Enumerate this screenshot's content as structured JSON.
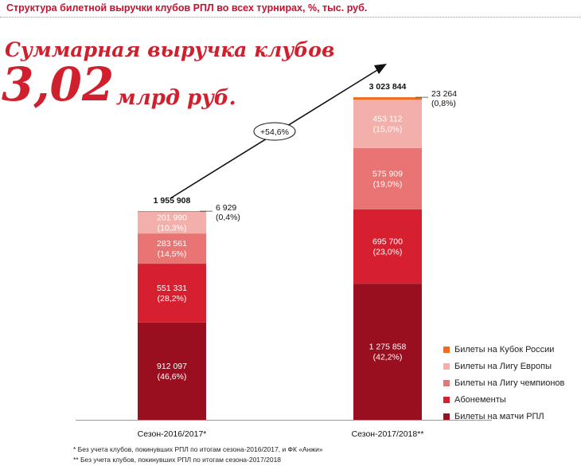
{
  "header": {
    "title": "Структура билетной выручки клубов РПЛ во всех турнирах, %, тыс. руб."
  },
  "headline": {
    "title": "Суммарная выручка клубов",
    "value": "3,02",
    "unit": "млрд руб."
  },
  "footnotes": [
    "* Без учета клубов, покинувших РПЛ по итогам сезона-2016/2017, и ФК «Анжи»",
    "** Без учета клубов, покинувших РПЛ по итогам сезона-2017/2018"
  ],
  "chart_data": {
    "type": "bar",
    "stacked": true,
    "categories": [
      "Сезон-2016/2017*",
      "Сезон-2017/2018**"
    ],
    "totals": [
      "1 955 908",
      "3 023 844"
    ],
    "growth_label": "+54,6%",
    "series": [
      {
        "name": "Билеты на матчи РПЛ",
        "color": "#9a0f20",
        "values": [
          912097,
          1275858
        ],
        "labels": [
          "912 097",
          "1 275 858"
        ],
        "pct": [
          "(46,6%)",
          "(42,2%)"
        ]
      },
      {
        "name": "Абонементы",
        "color": "#d6202f",
        "values": [
          551331,
          695700
        ],
        "labels": [
          "551 331",
          "695 700"
        ],
        "pct": [
          "(28,2%)",
          "(23,0%)"
        ]
      },
      {
        "name": "Билеты на Лигу чемпионов",
        "color": "#e87573",
        "values": [
          283561,
          575909
        ],
        "labels": [
          "283 561",
          "575 909"
        ],
        "pct": [
          "(14,5%)",
          "(19,0%)"
        ]
      },
      {
        "name": "Билеты на Лигу Европы",
        "color": "#f3b0ab",
        "values": [
          201990,
          453112
        ],
        "labels": [
          "201 990",
          "453 112"
        ],
        "pct": [
          "(10,3%)",
          "(15,0%)"
        ]
      },
      {
        "name": "Билеты на Кубок России",
        "color": "#f26a1b",
        "values": [
          6929,
          23264
        ],
        "labels": [
          "6 929",
          "23 264"
        ],
        "pct": [
          "(0,4%)",
          "(0,8%)"
        ]
      }
    ],
    "legend_order": [
      "Билеты на Кубок России",
      "Билеты на Лигу Европы",
      "Билеты на Лигу чемпионов",
      "Абонементы",
      "Билеты на матчи РПЛ"
    ],
    "legend_position": "bottom-right"
  }
}
